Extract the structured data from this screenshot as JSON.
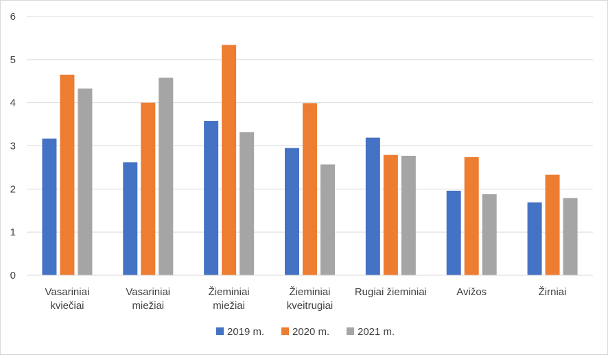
{
  "chart_data": {
    "type": "bar",
    "categories": [
      [
        "Vasariniai",
        "kviečiai"
      ],
      [
        "Vasariniai",
        "miežiai"
      ],
      [
        "Žieminiai",
        "miežiai"
      ],
      [
        "Žieminiai",
        "kveitrugiai"
      ],
      [
        "Rugiai žieminiai"
      ],
      [
        "Avižos"
      ],
      [
        "Žirniai"
      ]
    ],
    "series": [
      {
        "name": "2019 m.",
        "color": "#4472C4",
        "values": [
          3.17,
          2.62,
          3.58,
          2.95,
          3.19,
          1.96,
          1.69
        ]
      },
      {
        "name": "2020 m.",
        "color": "#ED7D31",
        "values": [
          4.65,
          4.0,
          5.34,
          3.99,
          2.79,
          2.74,
          2.33
        ]
      },
      {
        "name": "2021 m.",
        "color": "#A5A5A5",
        "values": [
          4.33,
          4.58,
          3.32,
          2.57,
          2.77,
          1.88,
          1.79
        ]
      }
    ],
    "yticks": [
      "0",
      "1",
      "2",
      "3",
      "4",
      "5",
      "6"
    ],
    "ylim": [
      0,
      6
    ],
    "grid": true,
    "legend_position": "bottom"
  }
}
